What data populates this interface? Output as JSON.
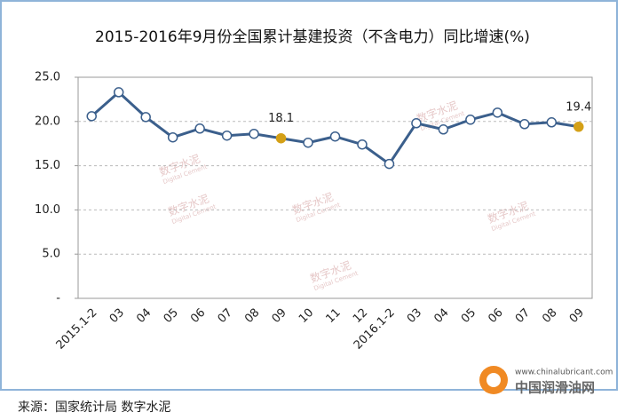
{
  "chart_data": {
    "type": "line",
    "title": "2015-2016年9月份全国累计基建投资（不含电力）同比增速(%)",
    "categories": [
      "2015.1-2",
      "03",
      "04",
      "05",
      "06",
      "07",
      "08",
      "09",
      "10",
      "11",
      "12",
      "2016.1-2",
      "03",
      "04",
      "05",
      "06",
      "07",
      "08",
      "09"
    ],
    "series": [
      {
        "name": "同比增速",
        "color": "#3b5f8c",
        "values": [
          20.6,
          23.3,
          20.5,
          18.2,
          19.2,
          18.4,
          18.6,
          18.1,
          17.6,
          18.3,
          17.4,
          15.2,
          19.8,
          19.1,
          20.2,
          21.0,
          19.7,
          19.9,
          19.4
        ],
        "value_labels": [
          null,
          null,
          null,
          null,
          null,
          null,
          null,
          "18.1",
          null,
          null,
          null,
          null,
          null,
          null,
          null,
          null,
          null,
          null,
          "19.4"
        ]
      }
    ],
    "highlight_color": "#d4a017",
    "ylim": [
      0,
      25
    ],
    "yticks": [
      {
        "value": 0,
        "label": "-"
      },
      {
        "value": 5,
        "label": "5.0"
      },
      {
        "value": 10,
        "label": "10.0"
      },
      {
        "value": 15,
        "label": "15.0"
      },
      {
        "value": 20,
        "label": "20.0"
      },
      {
        "value": 25,
        "label": "25.0"
      }
    ],
    "grid": true
  },
  "watermark": {
    "name": "数字水泥",
    "sub": "Digital Cement"
  },
  "footer": {
    "source": "来源：国家统计局  数字水泥"
  },
  "logo": {
    "url": "www.chinalubricant.com",
    "name": "中国润滑油网"
  }
}
